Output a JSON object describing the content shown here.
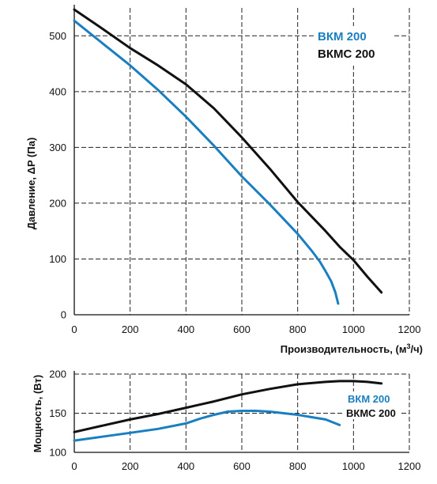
{
  "colors": {
    "bkm": "#1a7fc0",
    "bkmc": "#111111",
    "grid": "#222222"
  },
  "chart_data": [
    {
      "type": "line",
      "title": "",
      "xlabel": "Производительность, (м³/ч)",
      "xlabel_main": "Производительность, (м",
      "xlabel_sup": "3",
      "xlabel_tail": "/ч)",
      "ylabel": "Давление, ΔP (Па)",
      "xlim": [
        0,
        1200
      ],
      "ylim": [
        0,
        550
      ],
      "xticks": [
        0,
        200,
        400,
        600,
        800,
        1000,
        1200
      ],
      "yticks": [
        0,
        100,
        200,
        300,
        400,
        500
      ],
      "grid": true,
      "legend_position": "top-right",
      "series": [
        {
          "name": "ВКМ 200",
          "color": "#1a7fc0",
          "x": [
            0,
            100,
            200,
            300,
            400,
            500,
            600,
            700,
            800,
            850,
            880,
            900,
            920,
            935,
            945
          ],
          "y": [
            527,
            487,
            447,
            403,
            355,
            303,
            248,
            198,
            145,
            115,
            95,
            78,
            60,
            40,
            20
          ]
        },
        {
          "name": "ВКМС 200",
          "color": "#111111",
          "x": [
            0,
            100,
            200,
            300,
            400,
            500,
            600,
            700,
            800,
            900,
            950,
            1000,
            1050,
            1100
          ],
          "y": [
            547,
            513,
            478,
            447,
            413,
            370,
            318,
            262,
            202,
            150,
            122,
            98,
            68,
            40
          ]
        }
      ]
    },
    {
      "type": "line",
      "title": "",
      "xlabel": "",
      "ylabel": "Мощность, (Вт)",
      "xlim": [
        0,
        1200
      ],
      "ylim": [
        100,
        200
      ],
      "xticks": [
        0,
        200,
        400,
        600,
        800,
        1000,
        1200
      ],
      "yticks": [
        100,
        150,
        200
      ],
      "grid": true,
      "legend_position": "right",
      "series": [
        {
          "name": "ВКМ 200",
          "color": "#1a7fc0",
          "x": [
            0,
            100,
            200,
            300,
            400,
            450,
            500,
            550,
            600,
            650,
            700,
            750,
            800,
            850,
            900,
            950
          ],
          "y": [
            115,
            120,
            125,
            130,
            137,
            143,
            148,
            152,
            153,
            153,
            152,
            150,
            148,
            145,
            142,
            135
          ]
        },
        {
          "name": "ВКМС 200",
          "color": "#111111",
          "x": [
            0,
            100,
            200,
            300,
            400,
            500,
            600,
            700,
            800,
            900,
            950,
            1000,
            1050,
            1100
          ],
          "y": [
            126,
            134,
            142,
            149,
            157,
            165,
            174,
            181,
            187,
            190,
            191,
            191,
            190,
            188
          ]
        }
      ]
    }
  ]
}
